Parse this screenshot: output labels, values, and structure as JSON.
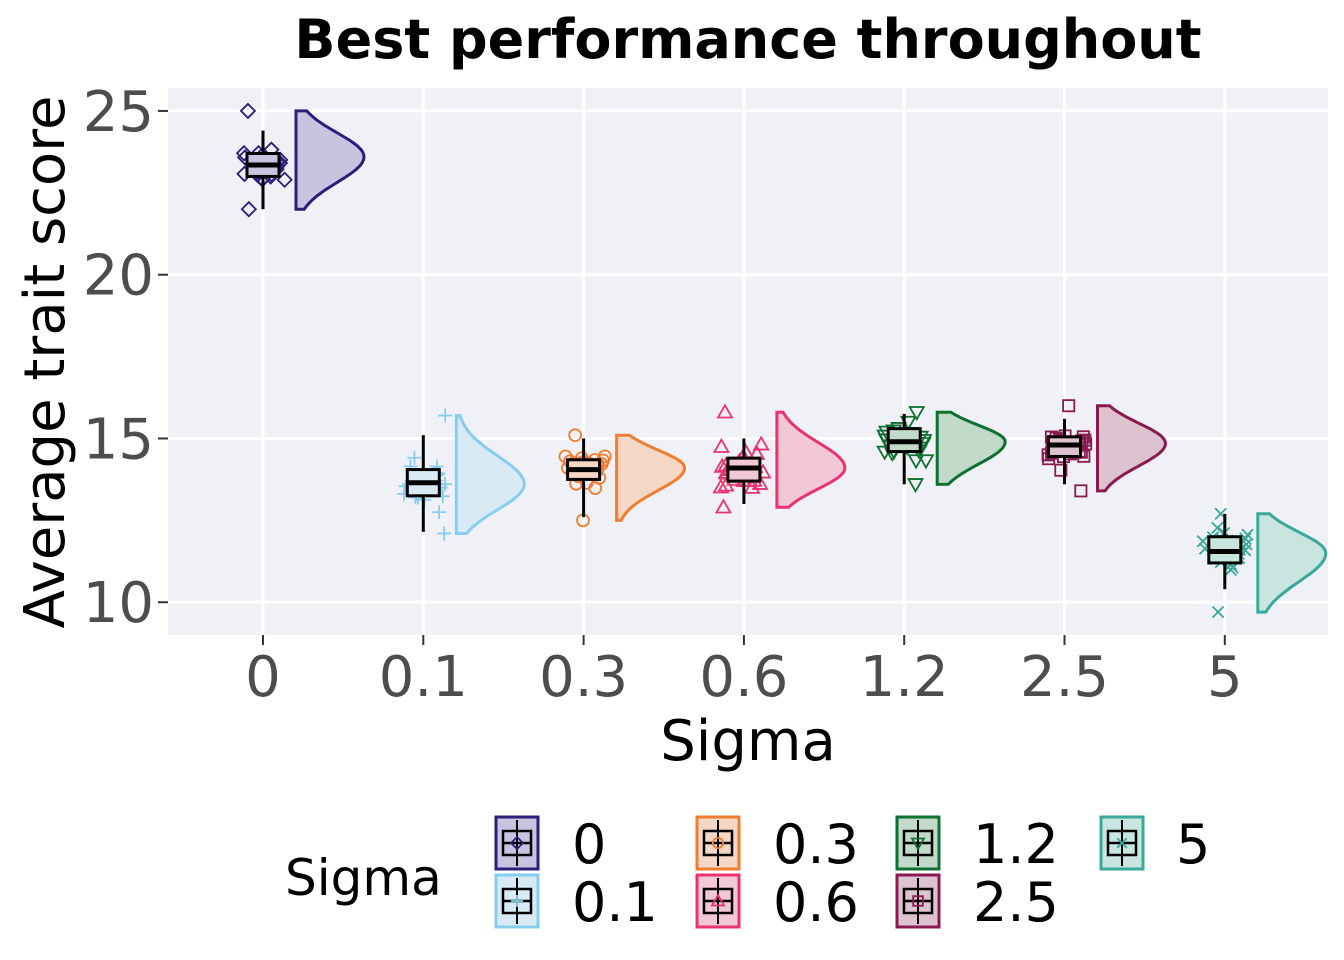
{
  "chart_data": {
    "type": "raincloud",
    "title": "Best performance throughout",
    "xlabel": "Sigma",
    "ylabel": "Average trait score",
    "ylim": [
      9,
      25.7
    ],
    "yticks": [
      10,
      15,
      20,
      25
    ],
    "categories": [
      "0",
      "0.1",
      "0.3",
      "0.6",
      "1.2",
      "2.5",
      "5"
    ],
    "grid": true,
    "legend": {
      "title": "Sigma",
      "placement": "bottom"
    },
    "series": [
      {
        "name": "0",
        "color": "#2e1e7a",
        "fill": "#c9c3df",
        "marker": "diamond",
        "min": 22.0,
        "q1": 23.0,
        "median": 23.35,
        "q3": 23.7,
        "max": 24.4,
        "pmin": 22.0,
        "pmax": 25.0,
        "mode": 23.6
      },
      {
        "name": "0.1",
        "color": "#87ceee",
        "fill": "#d8ebf5",
        "marker": "plus",
        "min": 12.15,
        "q1": 13.25,
        "median": 13.65,
        "q3": 14.05,
        "max": 15.1,
        "pmin": 12.1,
        "pmax": 15.7,
        "mode": 13.6
      },
      {
        "name": "0.3",
        "color": "#ee7d32",
        "fill": "#f4d7c5",
        "marker": "circle",
        "min": 12.6,
        "q1": 13.75,
        "median": 14.05,
        "q3": 14.35,
        "max": 15.0,
        "pmin": 12.5,
        "pmax": 15.1,
        "mode": 14.1
      },
      {
        "name": "0.6",
        "color": "#e8336f",
        "fill": "#f2c7d6",
        "marker": "triangle-up",
        "min": 13.0,
        "q1": 13.7,
        "median": 14.1,
        "q3": 14.4,
        "max": 15.0,
        "pmin": 12.9,
        "pmax": 15.8,
        "mode": 14.1
      },
      {
        "name": "1.2",
        "color": "#0e7031",
        "fill": "#c2dac9",
        "marker": "triangle-down",
        "min": 13.6,
        "q1": 14.6,
        "median": 14.9,
        "q3": 15.3,
        "max": 15.75,
        "pmin": 13.6,
        "pmax": 15.8,
        "mode": 14.9
      },
      {
        "name": "2.5",
        "color": "#8a1a52",
        "fill": "#dcc3cf",
        "marker": "square",
        "min": 13.6,
        "q1": 14.45,
        "median": 14.8,
        "q3": 15.05,
        "max": 15.6,
        "pmin": 13.4,
        "pmax": 16.0,
        "mode": 14.85
      },
      {
        "name": "5",
        "color": "#3aa89a",
        "fill": "#c9e5df",
        "marker": "x",
        "min": 10.4,
        "q1": 11.2,
        "median": 11.55,
        "q3": 12.0,
        "max": 12.7,
        "pmin": 9.7,
        "pmax": 12.7,
        "mode": 11.5
      }
    ]
  }
}
